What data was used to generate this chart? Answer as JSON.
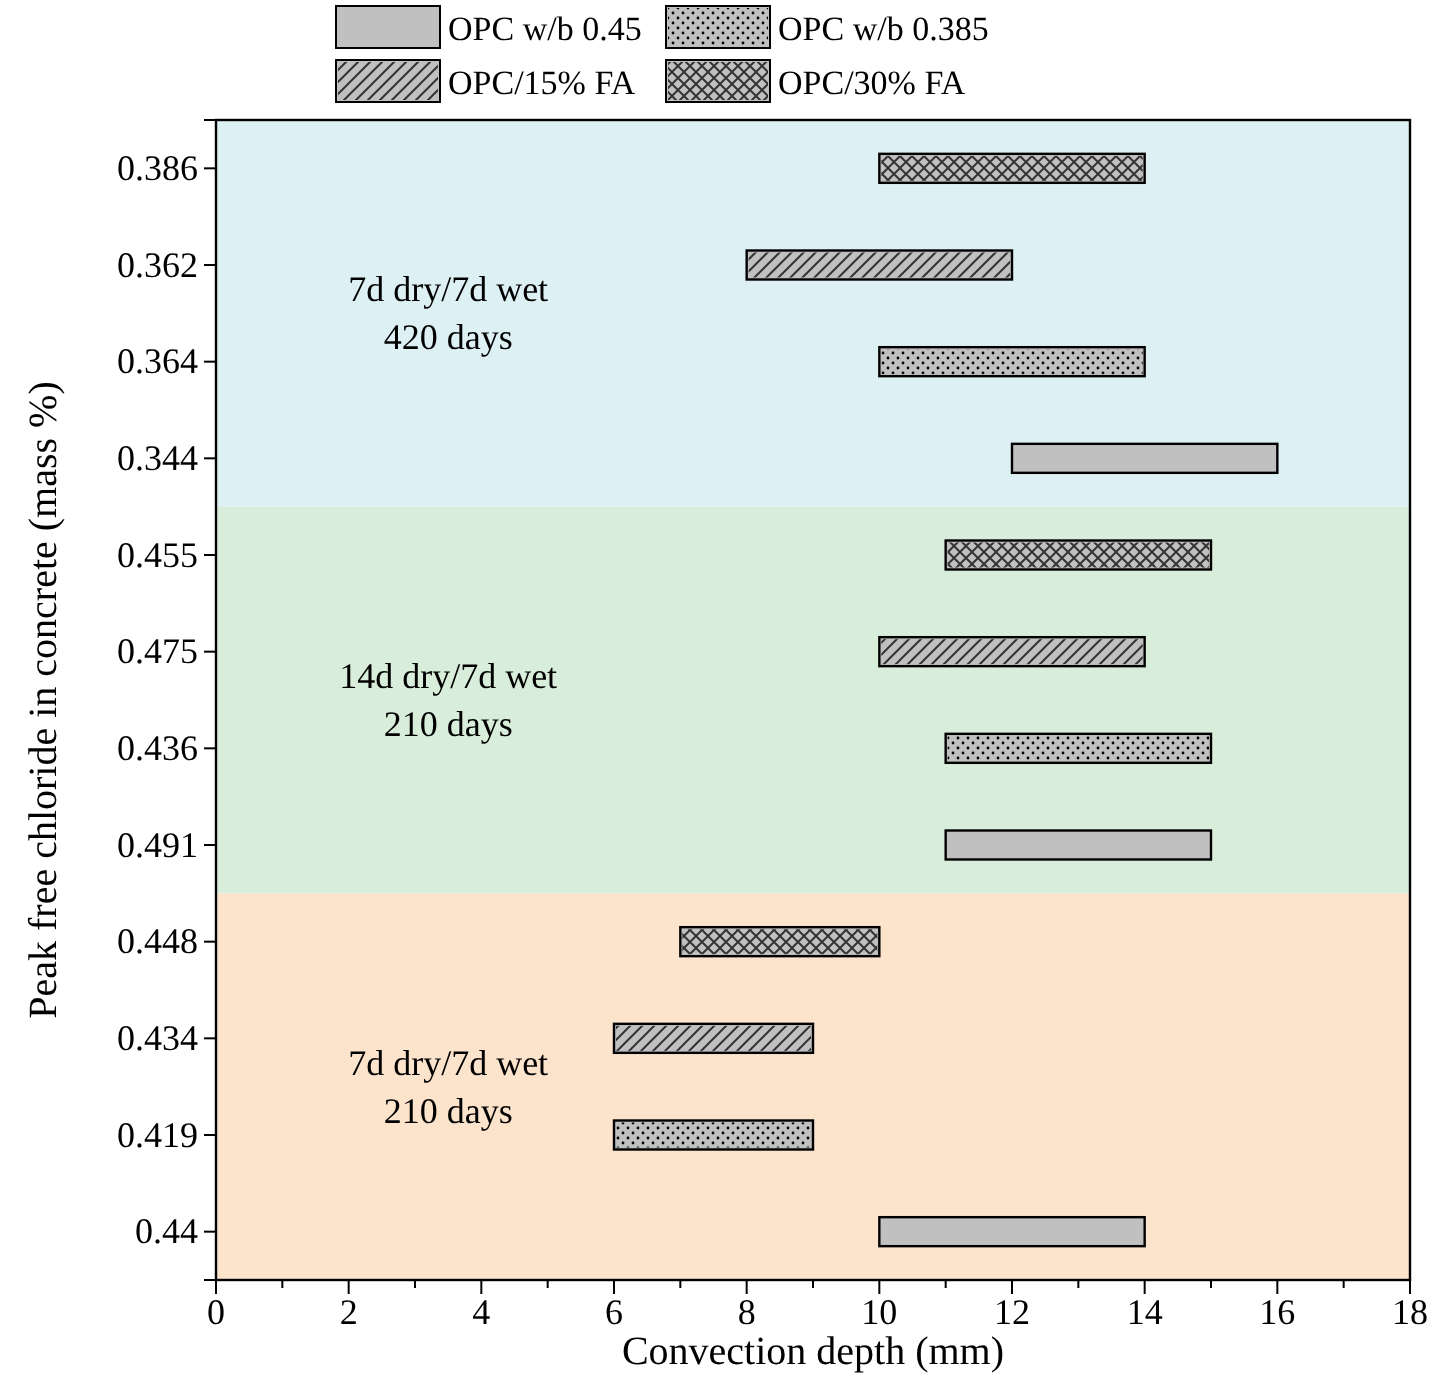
{
  "chart_data": {
    "type": "bar",
    "orientation": "horizontal",
    "xlabel": "Convection depth (mm)",
    "ylabel": "Peak free chloride in concrete (mass %)",
    "categories": [
      "0.386",
      "0.362",
      "0.364",
      "0.344",
      "0.455",
      "0.475",
      "0.436",
      "0.491",
      "0.448",
      "0.434",
      "0.419",
      "0.44"
    ],
    "series": [
      {
        "name": "OPC w/b 0.45",
        "color": "#c0c0c0",
        "base": [
          null,
          null,
          null,
          12,
          null,
          null,
          null,
          11,
          null,
          null,
          null,
          10
        ],
        "values": [
          null,
          null,
          null,
          4,
          null,
          null,
          null,
          4,
          null,
          null,
          null,
          4
        ]
      },
      {
        "name": "OPC w/b 0.385",
        "color": "#c0c0c0",
        "base": [
          null,
          null,
          10,
          null,
          null,
          null,
          11,
          null,
          null,
          null,
          6,
          null
        ],
        "values": [
          null,
          null,
          4,
          null,
          null,
          null,
          4,
          null,
          null,
          null,
          3,
          null
        ]
      },
      {
        "name": "OPC/15% FA",
        "color": "#c0c0c0",
        "base": [
          null,
          8,
          null,
          null,
          null,
          10,
          null,
          null,
          null,
          6,
          null,
          null
        ],
        "values": [
          null,
          4,
          null,
          null,
          null,
          4,
          null,
          null,
          null,
          3,
          null,
          null
        ]
      },
      {
        "name": "OPC/30% FA",
        "color": "#c0c0c0",
        "base": [
          10,
          null,
          null,
          null,
          11,
          null,
          null,
          null,
          7,
          null,
          null,
          null
        ],
        "values": [
          4,
          null,
          null,
          null,
          4,
          null,
          null,
          null,
          3,
          null,
          null,
          null
        ]
      }
    ],
    "xlim": [
      0,
      18
    ],
    "xticks": [
      0,
      {
        "value": 1,
        "label": null
      },
      2,
      {
        "value": 3,
        "label": null
      },
      4,
      {
        "value": 5,
        "label": null
      },
      6,
      {
        "value": 7,
        "label": null
      },
      8,
      {
        "value": 9,
        "label": null
      },
      10,
      {
        "value": 11,
        "label": null
      },
      12,
      {
        "value": 13,
        "label": null
      },
      14,
      {
        "value": 15,
        "label": null
      },
      16,
      {
        "value": 17,
        "label": null
      },
      18
    ],
    "bands": [
      {
        "axis": "y",
        "from": "0.386",
        "to": "0.344",
        "label": "7d dry/7d wet\n420 days",
        "color": "#ddf0f3"
      },
      {
        "axis": "y",
        "from": "0.455",
        "to": "0.491",
        "label": "14d dry/7d wet\n210 days",
        "color": "#d9eddb"
      },
      {
        "axis": "y",
        "from": "0.448",
        "to": "0.44",
        "label": "7d dry/7d wet\n210 days",
        "color": "#fbe3cc"
      }
    ],
    "legend": "top",
    "grid": false
  }
}
